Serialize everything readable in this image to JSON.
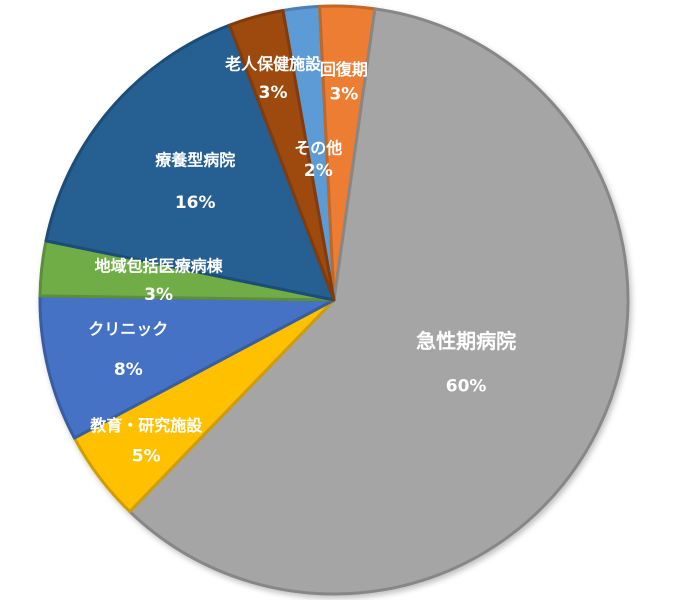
{
  "chart_data": {
    "type": "pie",
    "title": "",
    "start_angle_deg": -10,
    "direction": "clockwise",
    "slices": [
      {
        "label": "その他",
        "value": 2,
        "value_label": "2%",
        "color": "#5B9BD5"
      },
      {
        "label": "回復期",
        "value": 3,
        "value_label": "3%",
        "color": "#ED7D31"
      },
      {
        "label": "急性期病院",
        "value": 60,
        "value_label": "60%",
        "color": "#A5A5A5"
      },
      {
        "label": "教育・研究施設",
        "value": 5,
        "value_label": "5%",
        "color": "#FFC000"
      },
      {
        "label": "クリニック",
        "value": 8,
        "value_label": "8%",
        "color": "#4472C4"
      },
      {
        "label": "地域包括医療病棟",
        "value": 3,
        "value_label": "3%",
        "color": "#70AD47"
      },
      {
        "label": "療養型病院",
        "value": 16,
        "value_label": "16%",
        "color": "#255E91"
      },
      {
        "label": "老人保健施設",
        "value": 3,
        "value_label": "3%",
        "color": "#9E480E"
      }
    ]
  }
}
